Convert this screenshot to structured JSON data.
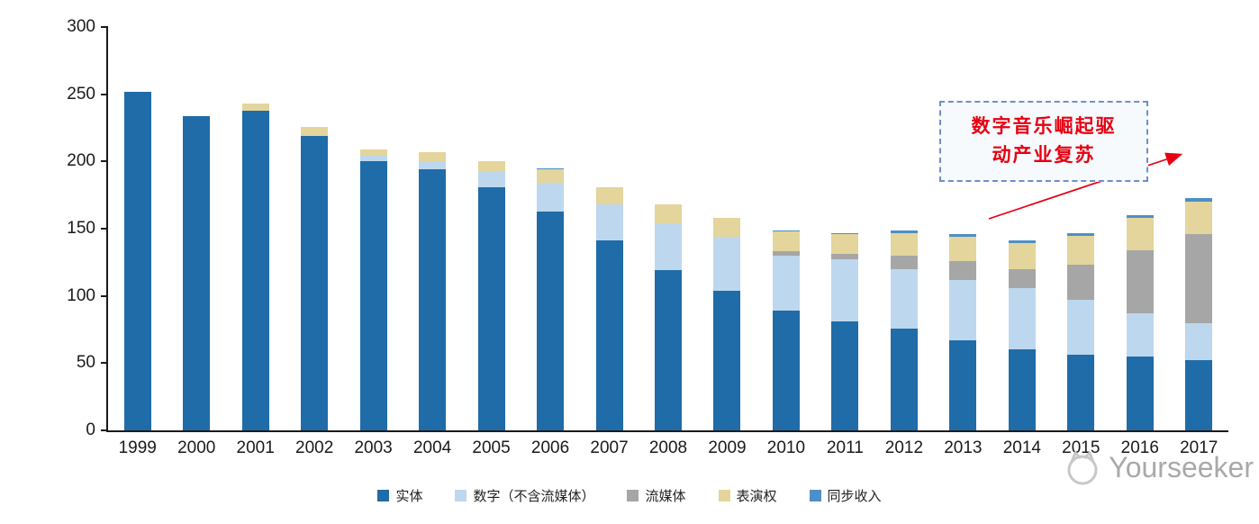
{
  "chart_data": {
    "type": "bar",
    "stacked": true,
    "title": "",
    "categories": [
      "1999",
      "2000",
      "2001",
      "2002",
      "2003",
      "2004",
      "2005",
      "2006",
      "2007",
      "2008",
      "2009",
      "2010",
      "2011",
      "2012",
      "2013",
      "2014",
      "2015",
      "2016",
      "2017"
    ],
    "series": [
      {
        "name": "实体",
        "color": "#1F6CA8",
        "values": [
          252,
          234,
          238,
          219,
          200,
          194,
          181,
          163,
          141,
          119,
          104,
          89,
          81,
          76,
          67,
          60,
          56,
          55,
          52
        ]
      },
      {
        "name": "数字（不含流媒体）",
        "color": "#BDD7EE",
        "values": [
          0,
          0,
          0,
          0,
          4,
          6,
          11,
          21,
          27,
          35,
          40,
          41,
          46,
          44,
          45,
          46,
          41,
          32,
          28
        ]
      },
      {
        "name": "流媒体",
        "color": "#A6A6A6",
        "values": [
          0,
          0,
          0,
          0,
          0,
          0,
          0,
          0,
          0,
          0,
          0,
          3,
          4,
          10,
          14,
          14,
          26,
          47,
          66
        ]
      },
      {
        "name": "表演权",
        "color": "#E3D59B",
        "values": [
          0,
          0,
          5,
          7,
          5,
          7,
          8,
          10,
          13,
          14,
          14,
          15,
          15,
          17,
          18,
          19,
          22,
          24,
          24
        ]
      },
      {
        "name": "同步收入",
        "color": "#4E8FC7",
        "values": [
          0,
          0,
          0,
          0,
          0,
          0,
          0,
          1,
          0,
          0,
          0,
          1,
          1,
          2,
          2,
          2,
          2,
          2,
          3
        ]
      }
    ],
    "ylim": [
      0,
      300
    ],
    "ytick_step": 50,
    "grid": false,
    "legend_position": "bottom"
  },
  "annotation": {
    "line1": "数字音乐崛起驱",
    "line2": "动产业复苏",
    "text_color": "#E60012",
    "border_color": "#6E8FC9"
  },
  "watermark": {
    "text": "Yourseeker"
  }
}
